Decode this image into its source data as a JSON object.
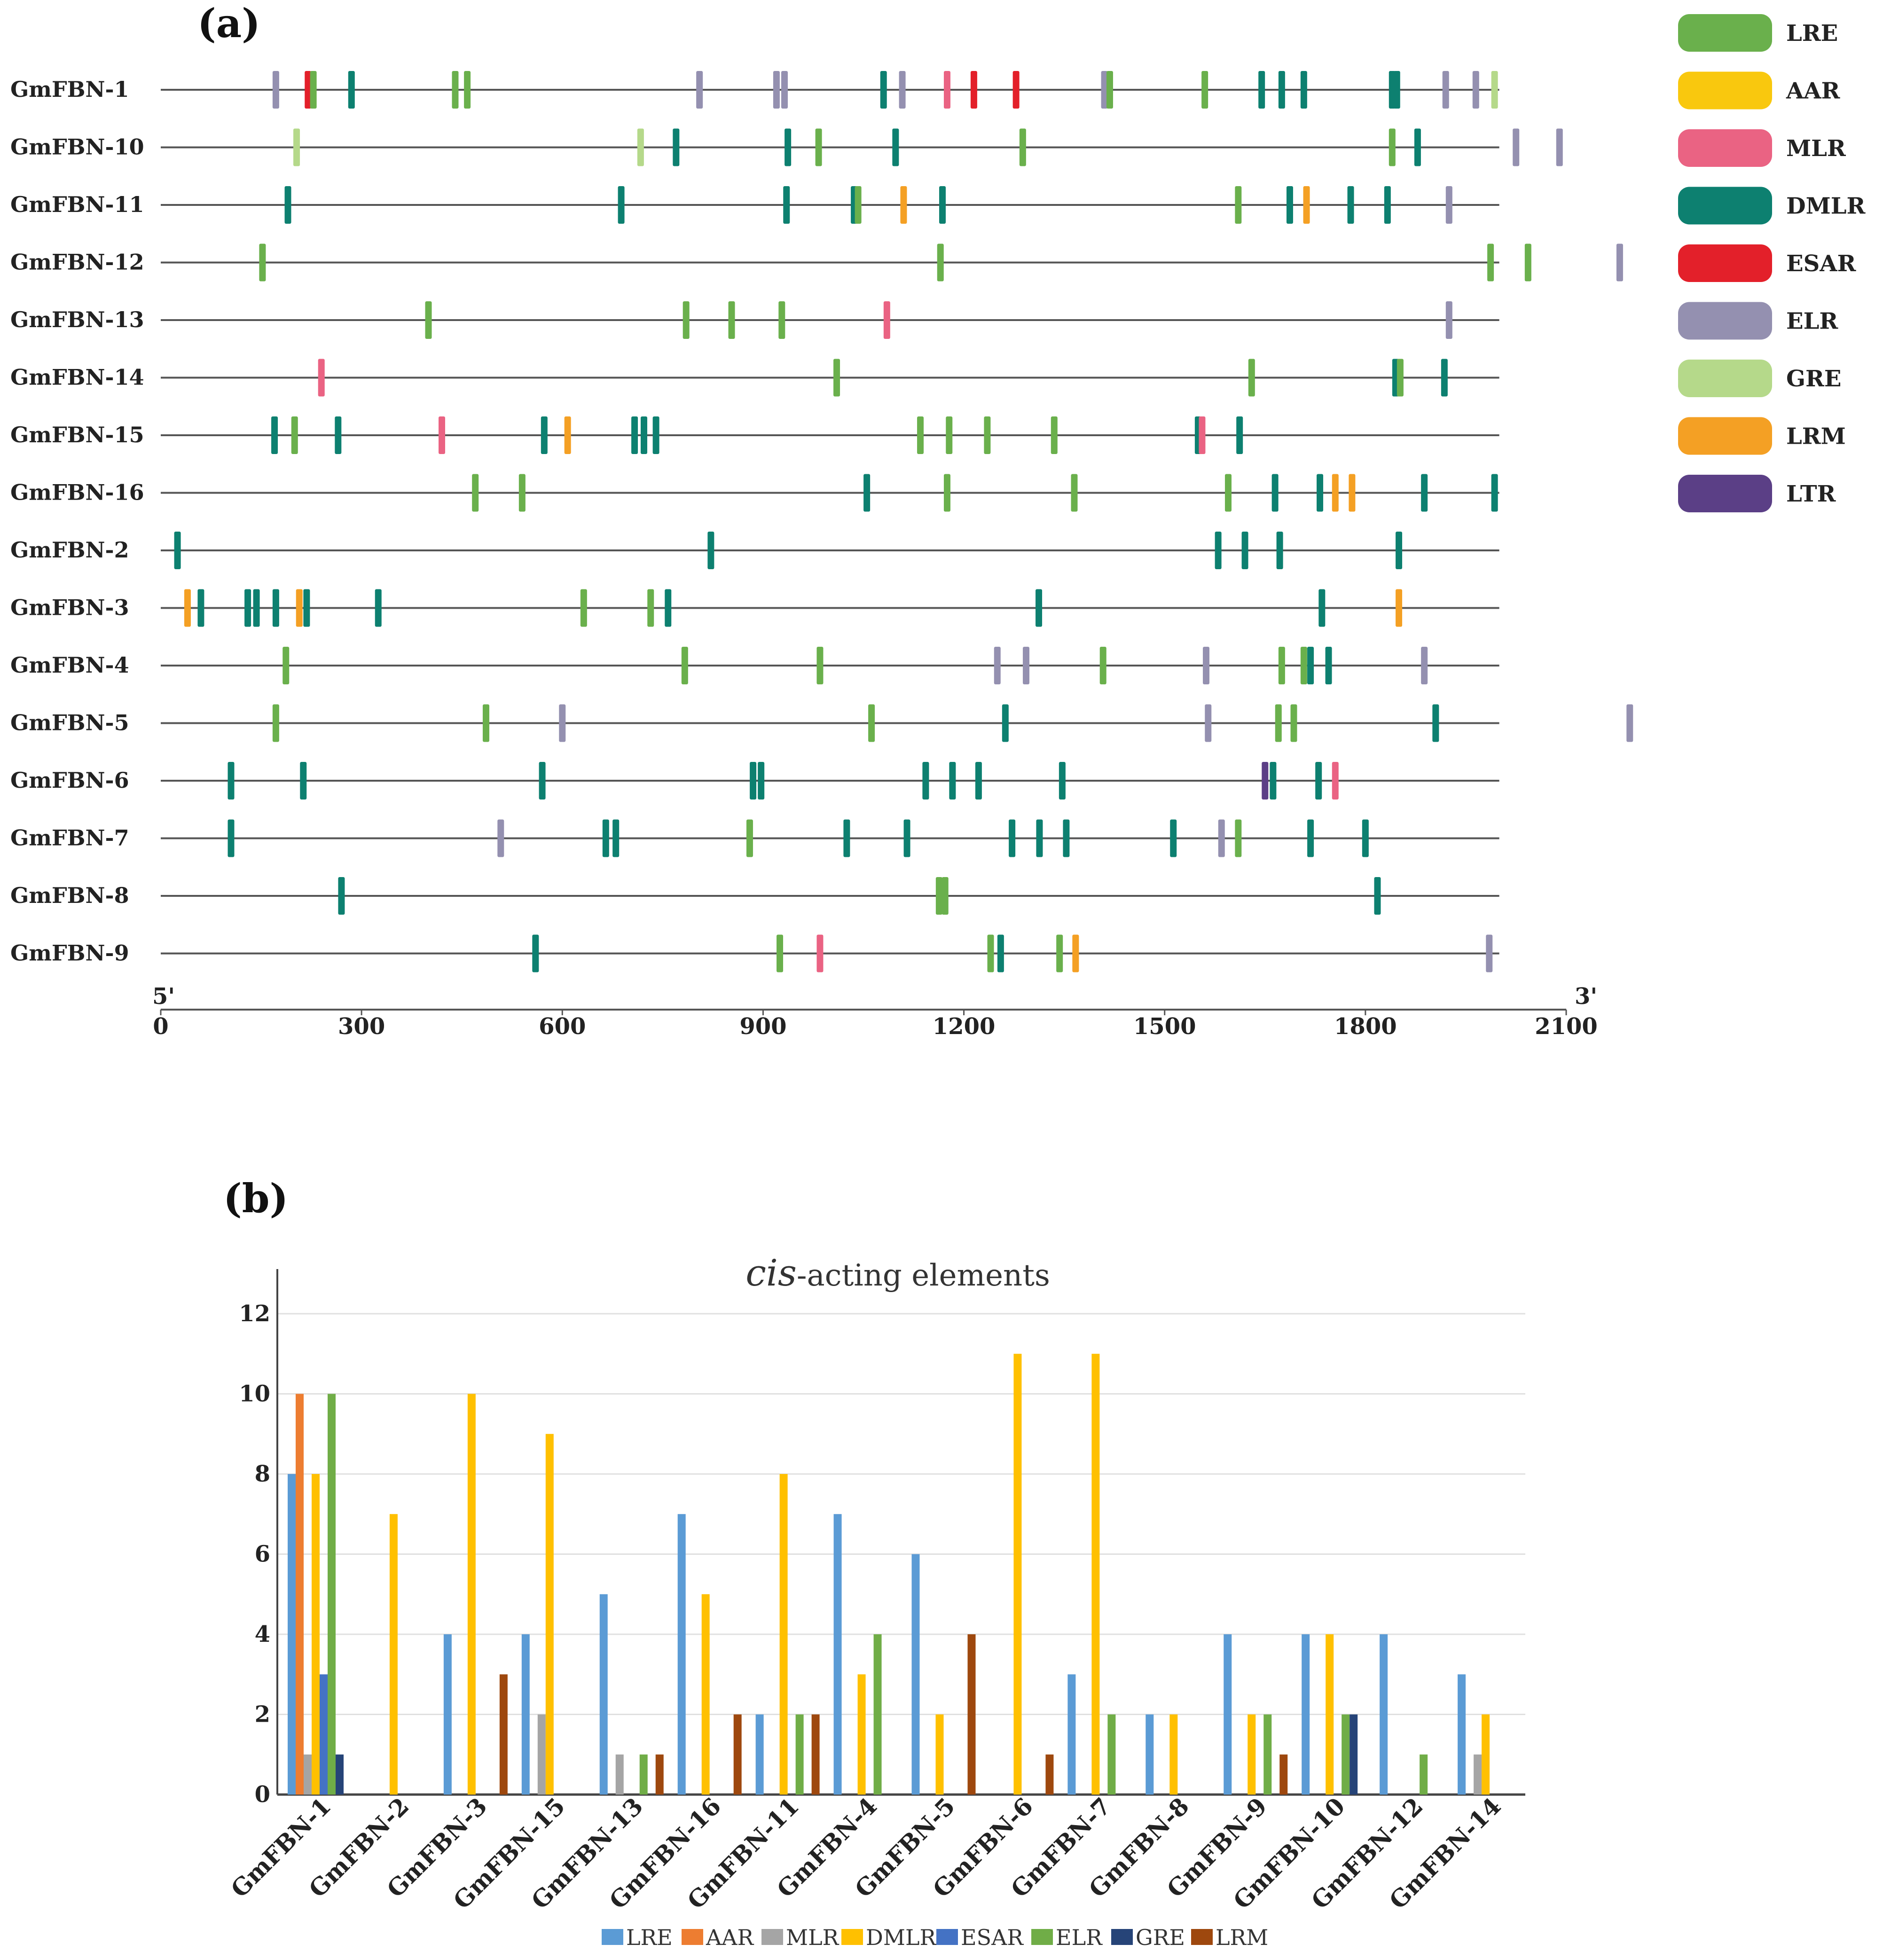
{
  "panels": {
    "a_label": "(a)",
    "b_label": "(b)"
  },
  "chart_data": [
    {
      "type": "other",
      "name": "cis-element positions on promoters",
      "axis": {
        "min": 0,
        "max": 2100,
        "ticks": [
          0,
          300,
          600,
          900,
          1200,
          1500,
          1800,
          2100
        ],
        "start_label": "5'",
        "end_label": "3'"
      },
      "line_end": 2000,
      "legend": [
        {
          "name": "LRE",
          "color": "#6ab04c"
        },
        {
          "name": "AAR",
          "color": "#f9c80e"
        },
        {
          "name": "MLR",
          "color": "#ea6383"
        },
        {
          "name": "DMLR",
          "color": "#0d8070"
        },
        {
          "name": "ESAR",
          "color": "#e3202a"
        },
        {
          "name": "ELR",
          "color": "#9490b0"
        },
        {
          "name": "GRE",
          "color": "#b5d98a"
        },
        {
          "name": "LRM",
          "color": "#f4a024"
        },
        {
          "name": "LTR",
          "color": "#5b3f86"
        }
      ],
      "genes": [
        {
          "name": "GmFBN-1",
          "marks": [
            [
              172,
              "ELR"
            ],
            [
              220,
              "ESAR"
            ],
            [
              228,
              "LRE"
            ],
            [
              285,
              "DMLR"
            ],
            [
              440,
              "LRE"
            ],
            [
              458,
              "LRE"
            ],
            [
              805,
              "ELR"
            ],
            [
              920,
              "ELR"
            ],
            [
              932,
              "ELR"
            ],
            [
              1080,
              "DMLR"
            ],
            [
              1108,
              "ELR"
            ],
            [
              1175,
              "MLR"
            ],
            [
              1215,
              "ESAR"
            ],
            [
              1278,
              "ESAR"
            ],
            [
              1410,
              "ELR"
            ],
            [
              1418,
              "LRE"
            ],
            [
              1560,
              "LRE"
            ],
            [
              1645,
              "DMLR"
            ],
            [
              1675,
              "DMLR"
            ],
            [
              1708,
              "DMLR"
            ],
            [
              1840,
              "DMLR"
            ],
            [
              1847,
              "DMLR"
            ],
            [
              1920,
              "ELR"
            ],
            [
              1965,
              "ELR"
            ],
            [
              1993,
              "GRE"
            ]
          ]
        },
        {
          "name": "GmFBN-10",
          "marks": [
            [
              203,
              "GRE"
            ],
            [
              717,
              "GRE"
            ],
            [
              770,
              "DMLR"
            ],
            [
              937,
              "DMLR"
            ],
            [
              983,
              "LRE"
            ],
            [
              1098,
              "DMLR"
            ],
            [
              1288,
              "LRE"
            ],
            [
              1840,
              "LRE"
            ],
            [
              1878,
              "DMLR"
            ],
            [
              2025,
              "ELR"
            ],
            [
              2090,
              "ELR"
            ]
          ]
        },
        {
          "name": "GmFBN-11",
          "marks": [
            [
              190,
              "DMLR"
            ],
            [
              688,
              "DMLR"
            ],
            [
              935,
              "DMLR"
            ],
            [
              1036,
              "DMLR"
            ],
            [
              1042,
              "LRE"
            ],
            [
              1110,
              "LRM"
            ],
            [
              1168,
              "DMLR"
            ],
            [
              1610,
              "LRE"
            ],
            [
              1687,
              "DMLR"
            ],
            [
              1712,
              "LRM"
            ],
            [
              1778,
              "DMLR"
            ],
            [
              1833,
              "DMLR"
            ],
            [
              1925,
              "ELR"
            ]
          ]
        },
        {
          "name": "GmFBN-12",
          "marks": [
            [
              152,
              "LRE"
            ],
            [
              1165,
              "LRE"
            ],
            [
              1987,
              "LRE"
            ],
            [
              2043,
              "LRE"
            ],
            [
              2180,
              "ELR"
            ]
          ]
        },
        {
          "name": "GmFBN-13",
          "marks": [
            [
              400,
              "LRE"
            ],
            [
              785,
              "LRE"
            ],
            [
              853,
              "LRE"
            ],
            [
              928,
              "LRE"
            ],
            [
              1085,
              "MLR"
            ],
            [
              1925,
              "ELR"
            ]
          ]
        },
        {
          "name": "GmFBN-14",
          "marks": [
            [
              240,
              "MLR"
            ],
            [
              1010,
              "LRE"
            ],
            [
              1630,
              "LRE"
            ],
            [
              1845,
              "DMLR"
            ],
            [
              1852,
              "LRE"
            ],
            [
              1918,
              "DMLR"
            ]
          ]
        },
        {
          "name": "GmFBN-15",
          "marks": [
            [
              170,
              "DMLR"
            ],
            [
              200,
              "LRE"
            ],
            [
              265,
              "DMLR"
            ],
            [
              420,
              "MLR"
            ],
            [
              573,
              "DMLR"
            ],
            [
              608,
              "LRM"
            ],
            [
              708,
              "DMLR"
            ],
            [
              722,
              "DMLR"
            ],
            [
              740,
              "DMLR"
            ],
            [
              1135,
              "LRE"
            ],
            [
              1178,
              "LRE"
            ],
            [
              1235,
              "LRE"
            ],
            [
              1335,
              "LRE"
            ],
            [
              1550,
              "DMLR"
            ],
            [
              1556,
              "MLR"
            ],
            [
              1612,
              "DMLR"
            ]
          ]
        },
        {
          "name": "GmFBN-16",
          "marks": [
            [
              470,
              "LRE"
            ],
            [
              540,
              "LRE"
            ],
            [
              1055,
              "DMLR"
            ],
            [
              1175,
              "LRE"
            ],
            [
              1365,
              "LRE"
            ],
            [
              1595,
              "LRE"
            ],
            [
              1665,
              "DMLR"
            ],
            [
              1732,
              "DMLR"
            ],
            [
              1755,
              "LRM"
            ],
            [
              1780,
              "LRM"
            ],
            [
              1888,
              "DMLR"
            ],
            [
              1993,
              "DMLR"
            ]
          ]
        },
        {
          "name": "GmFBN-2",
          "marks": [
            [
              25,
              "DMLR"
            ],
            [
              822,
              "DMLR"
            ],
            [
              1580,
              "DMLR"
            ],
            [
              1620,
              "DMLR"
            ],
            [
              1672,
              "DMLR"
            ],
            [
              1850,
              "DMLR"
            ]
          ]
        },
        {
          "name": "GmFBN-3",
          "marks": [
            [
              40,
              "LRM"
            ],
            [
              60,
              "DMLR"
            ],
            [
              130,
              "DMLR"
            ],
            [
              143,
              "DMLR"
            ],
            [
              172,
              "DMLR"
            ],
            [
              207,
              "LRM"
            ],
            [
              218,
              "DMLR"
            ],
            [
              325,
              "DMLR"
            ],
            [
              632,
              "LRE"
            ],
            [
              732,
              "LRE"
            ],
            [
              758,
              "DMLR"
            ],
            [
              1312,
              "DMLR"
            ],
            [
              1735,
              "DMLR"
            ],
            [
              1850,
              "LRM"
            ]
          ]
        },
        {
          "name": "GmFBN-4",
          "marks": [
            [
              187,
              "LRE"
            ],
            [
              783,
              "LRE"
            ],
            [
              985,
              "LRE"
            ],
            [
              1250,
              "ELR"
            ],
            [
              1293,
              "ELR"
            ],
            [
              1408,
              "LRE"
            ],
            [
              1562,
              "ELR"
            ],
            [
              1675,
              "LRE"
            ],
            [
              1708,
              "LRE"
            ],
            [
              1718,
              "DMLR"
            ],
            [
              1745,
              "DMLR"
            ],
            [
              1888,
              "ELR"
            ]
          ]
        },
        {
          "name": "GmFBN-5",
          "marks": [
            [
              172,
              "LRE"
            ],
            [
              486,
              "LRE"
            ],
            [
              600,
              "ELR"
            ],
            [
              1062,
              "LRE"
            ],
            [
              1262,
              "DMLR"
            ],
            [
              1565,
              "ELR"
            ],
            [
              1670,
              "LRE"
            ],
            [
              1693,
              "LRE"
            ],
            [
              1905,
              "DMLR"
            ],
            [
              2195,
              "ELR"
            ]
          ]
        },
        {
          "name": "GmFBN-6",
          "marks": [
            [
              105,
              "DMLR"
            ],
            [
              213,
              "DMLR"
            ],
            [
              570,
              "DMLR"
            ],
            [
              885,
              "DMLR"
            ],
            [
              897,
              "DMLR"
            ],
            [
              1143,
              "DMLR"
            ],
            [
              1183,
              "DMLR"
            ],
            [
              1222,
              "DMLR"
            ],
            [
              1347,
              "DMLR"
            ],
            [
              1650,
              "LTR"
            ],
            [
              1662,
              "DMLR"
            ],
            [
              1730,
              "DMLR"
            ],
            [
              1755,
              "MLR"
            ]
          ]
        },
        {
          "name": "GmFBN-7",
          "marks": [
            [
              105,
              "DMLR"
            ],
            [
              508,
              "ELR"
            ],
            [
              665,
              "DMLR"
            ],
            [
              680,
              "DMLR"
            ],
            [
              880,
              "LRE"
            ],
            [
              1025,
              "DMLR"
            ],
            [
              1115,
              "DMLR"
            ],
            [
              1272,
              "DMLR"
            ],
            [
              1313,
              "DMLR"
            ],
            [
              1353,
              "DMLR"
            ],
            [
              1513,
              "DMLR"
            ],
            [
              1585,
              "ELR"
            ],
            [
              1610,
              "LRE"
            ],
            [
              1718,
              "DMLR"
            ],
            [
              1800,
              "DMLR"
            ]
          ]
        },
        {
          "name": "GmFBN-8",
          "marks": [
            [
              270,
              "DMLR"
            ],
            [
              1163,
              "LRE"
            ],
            [
              1172,
              "LRE"
            ],
            [
              1818,
              "DMLR"
            ]
          ]
        },
        {
          "name": "GmFBN-9",
          "marks": [
            [
              560,
              "DMLR"
            ],
            [
              925,
              "LRE"
            ],
            [
              985,
              "MLR"
            ],
            [
              1240,
              "LRE"
            ],
            [
              1255,
              "DMLR"
            ],
            [
              1343,
              "LRE"
            ],
            [
              1367,
              "LRM"
            ],
            [
              1985,
              "ELR"
            ]
          ]
        }
      ]
    },
    {
      "type": "bar",
      "title_italic": "cis",
      "title_rest": "-acting elements",
      "ylim": [
        0,
        12
      ],
      "yticks": [
        0,
        2,
        4,
        6,
        8,
        10,
        12
      ],
      "categories": [
        "GmFBN-1",
        "GmFBN-2",
        "GmFBN-3",
        "GmFBN-15",
        "GmFBN-13",
        "GmFBN-16",
        "GmFBN-11",
        "GmFBN-4",
        "GmFBN-5",
        "GmFBN-6",
        "GmFBN-7",
        "GmFBN-8",
        "GmFBN-9",
        "GmFBN-10",
        "GmFBN-12",
        "GmFBN-14"
      ],
      "series": [
        {
          "name": "LRE",
          "color": "#5b9bd5",
          "values": [
            8,
            0,
            4,
            4,
            5,
            7,
            2,
            7,
            6,
            0,
            3,
            2,
            4,
            4,
            4,
            3
          ]
        },
        {
          "name": "AAR",
          "color": "#ed7d31",
          "values": [
            10,
            0,
            0,
            0,
            0,
            0,
            0,
            0,
            0,
            0,
            0,
            0,
            0,
            0,
            0,
            0
          ]
        },
        {
          "name": "MLR",
          "color": "#a5a5a5",
          "values": [
            1,
            0,
            0,
            2,
            1,
            0,
            0,
            0,
            0,
            0,
            0,
            0,
            0,
            0,
            0,
            1
          ]
        },
        {
          "name": "DMLR",
          "color": "#ffc000",
          "values": [
            8,
            7,
            10,
            9,
            0,
            5,
            8,
            3,
            2,
            11,
            11,
            2,
            2,
            4,
            0,
            2
          ]
        },
        {
          "name": "ESAR",
          "color": "#4472c4",
          "values": [
            3,
            0,
            0,
            0,
            0,
            0,
            0,
            0,
            0,
            0,
            0,
            0,
            0,
            0,
            0,
            0
          ]
        },
        {
          "name": "ELR",
          "color": "#70ad47",
          "values": [
            10,
            0,
            0,
            0,
            1,
            0,
            2,
            4,
            0,
            0,
            2,
            0,
            2,
            2,
            1,
            0
          ]
        },
        {
          "name": "GRE",
          "color": "#264478",
          "values": [
            1,
            0,
            0,
            0,
            0,
            0,
            0,
            0,
            0,
            0,
            0,
            0,
            0,
            2,
            0,
            0
          ]
        },
        {
          "name": "LRM",
          "color": "#9e480e",
          "values": [
            0,
            0,
            3,
            0,
            1,
            2,
            2,
            0,
            4,
            1,
            0,
            0,
            1,
            0,
            0,
            0
          ]
        }
      ]
    }
  ]
}
